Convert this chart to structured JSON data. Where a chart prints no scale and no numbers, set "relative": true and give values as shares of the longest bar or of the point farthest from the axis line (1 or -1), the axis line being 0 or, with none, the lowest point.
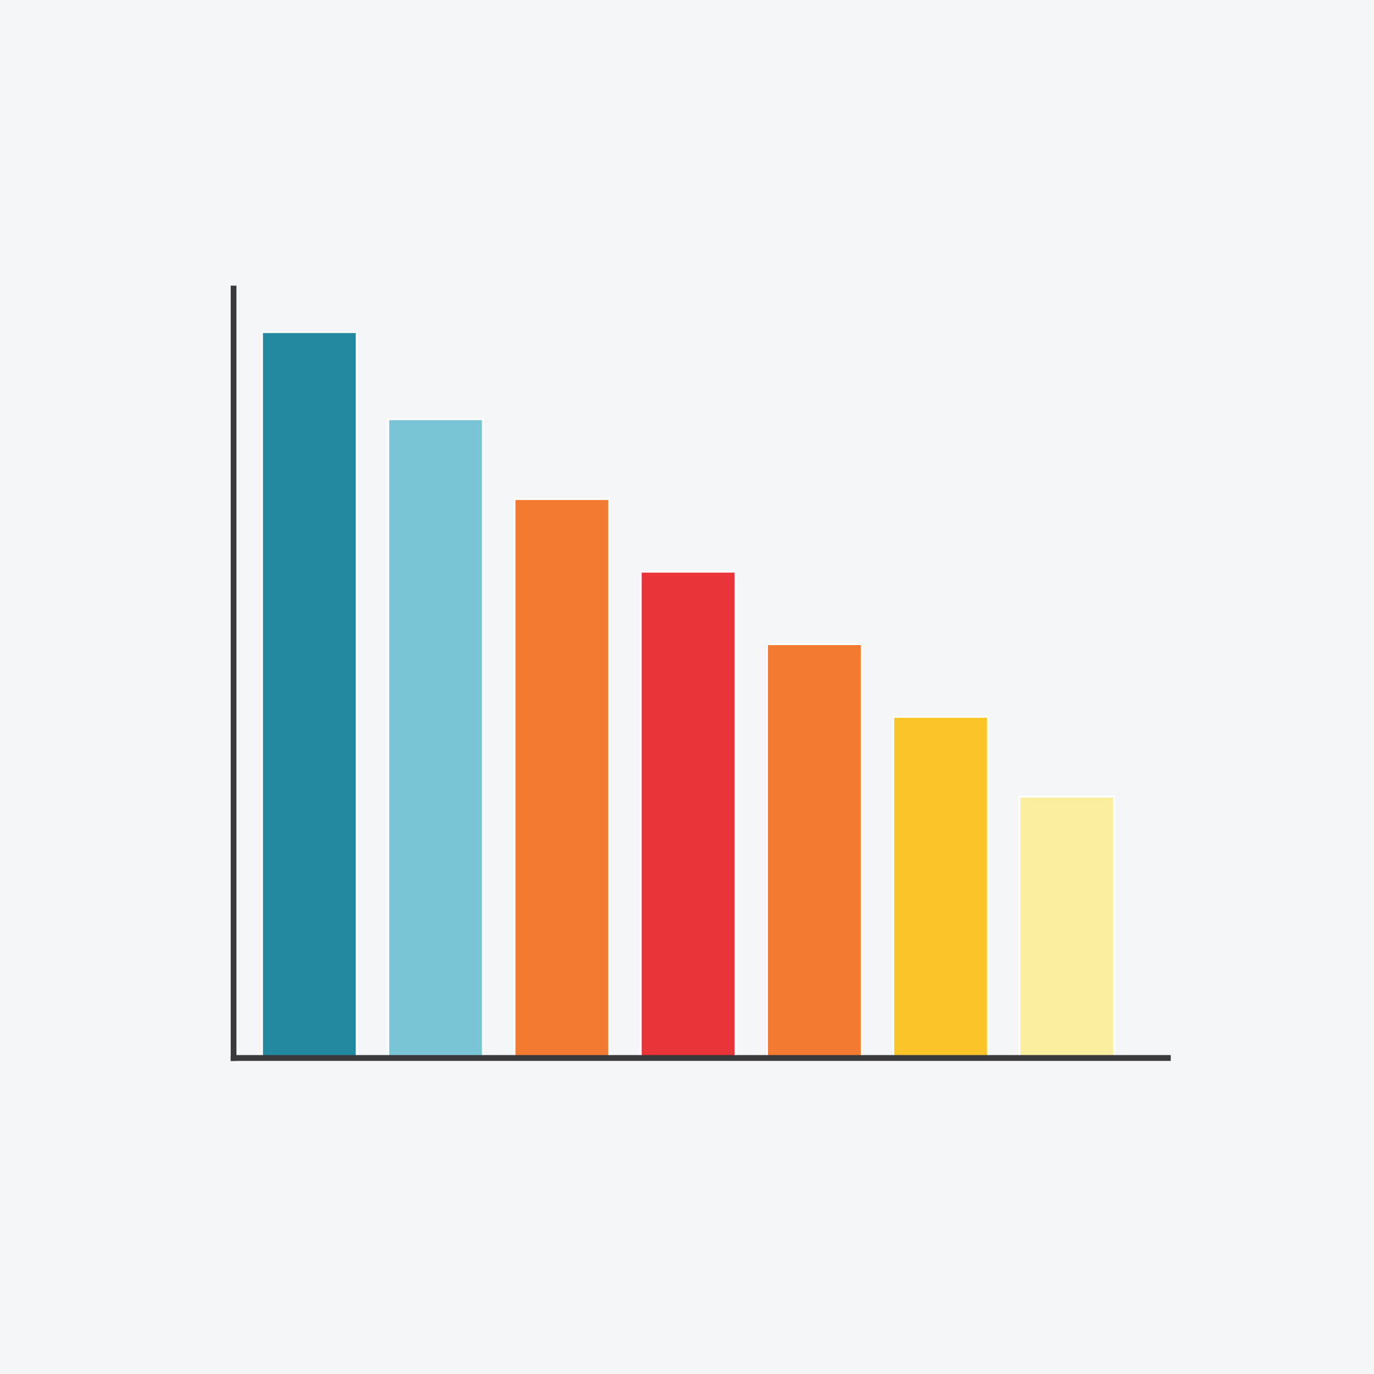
{
  "chart_data": {
    "type": "bar",
    "relative": true,
    "categories": [
      null,
      null,
      null,
      null,
      null,
      null,
      null
    ],
    "values": [
      1,
      0.88,
      0.77,
      0.67,
      0.57,
      0.47,
      0.36
    ],
    "colors": [
      "#2389a0",
      "#79c5d6",
      "#f37b31",
      "#e9343a",
      "#f37b31",
      "#fbc52a",
      "#fbee9e"
    ],
    "grid": false,
    "legend": false
  }
}
